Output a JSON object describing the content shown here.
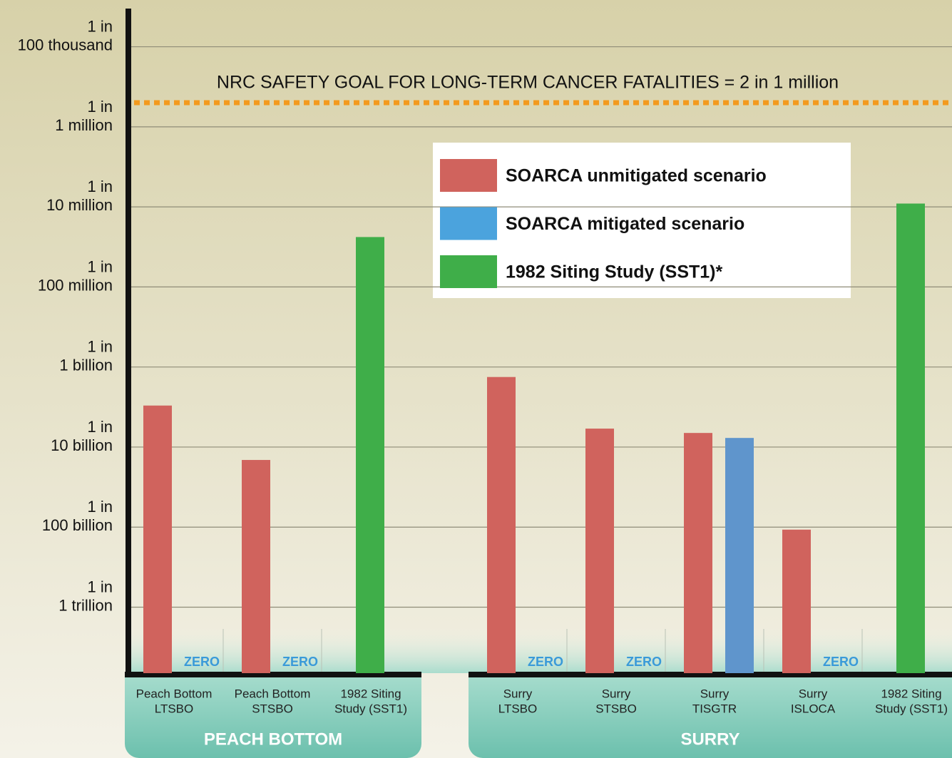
{
  "chart_data": {
    "type": "bar",
    "log_scale": true,
    "ylim": [
      1.5e-13,
      3e-05
    ],
    "yticks": [
      {
        "value": 1e-05,
        "label": "1 in\n100 thousand"
      },
      {
        "value": 1e-06,
        "label": "1 in\n1 million"
      },
      {
        "value": 1e-07,
        "label": "1 in\n10 million"
      },
      {
        "value": 1e-08,
        "label": "1 in\n100 million"
      },
      {
        "value": 1e-09,
        "label": "1 in\n1 billion"
      },
      {
        "value": 1e-10,
        "label": "1 in\n10 billion"
      },
      {
        "value": 1e-11,
        "label": "1 in\n100 billion"
      },
      {
        "value": 1e-12,
        "label": "1 in\n1 trillion"
      }
    ],
    "grid": true,
    "goal": {
      "label": "NRC SAFETY GOAL FOR LONG-TERM CANCER FATALITIES = 2 in 1 million",
      "value": 2e-06,
      "color": "#f39a1e"
    },
    "groups": [
      {
        "name": "PEACH BOTTOM",
        "categories": [
          "Peach Bottom\nLTSBO",
          "Peach Bottom\nSTSBO",
          "1982 Siting\nStudy (SST1)"
        ]
      },
      {
        "name": "SURRY",
        "categories": [
          "Surry\nLTSBO",
          "Surry\nSTSBO",
          "Surry\nTISGTR",
          "Surry\nISLOCA",
          "1982 Siting\nStudy (SST1)"
        ]
      }
    ],
    "series": [
      {
        "name": "SOARCA unmitigated scenario",
        "color": "#d0635d",
        "values": [
          3.3e-10,
          6.9e-11,
          null,
          7.5e-10,
          1.7e-10,
          1.5e-10,
          9.3e-12,
          null
        ]
      },
      {
        "name": "SOARCA mitigated scenario",
        "color": "#4ba3dd",
        "bar_color": "#5f95cc",
        "values": [
          0,
          0,
          null,
          0,
          0,
          1.3e-10,
          0,
          null
        ],
        "value_labels": [
          "ZERO",
          "ZERO",
          null,
          "ZERO",
          "ZERO",
          null,
          "ZERO",
          null
        ]
      },
      {
        "name": "1982 Siting Study (SST1)*",
        "color": "#3fae49",
        "values": [
          null,
          null,
          4.2e-08,
          null,
          null,
          null,
          null,
          1.1e-07
        ]
      }
    ]
  }
}
